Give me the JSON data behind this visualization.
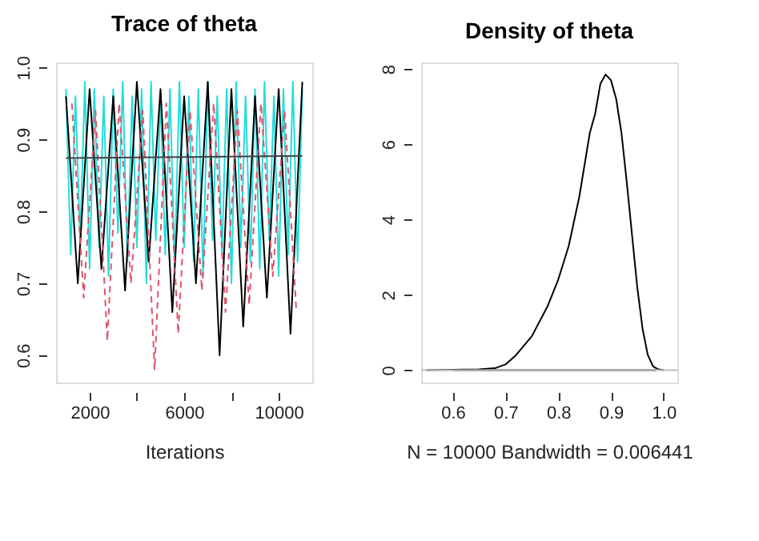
{
  "chart_data": [
    {
      "type": "line",
      "title": "Trace of theta",
      "xlabel": "Iterations",
      "xlim": [
        580,
        11420
      ],
      "ylim": [
        0.562,
        1.007
      ],
      "xticks": [
        {
          "value": 2000,
          "label": "2000"
        },
        {
          "value": 4000,
          "label": null
        },
        {
          "value": 6000,
          "label": "6000"
        },
        {
          "value": 8000,
          "label": null
        },
        {
          "value": 10000,
          "label": "10000"
        }
      ],
      "yticks": [
        0.6,
        0.7,
        0.8,
        0.9,
        {
          "value": 1.0,
          "label": "1.0"
        }
      ],
      "grid": false,
      "series": [
        {
          "color": "#22dddd",
          "line_style": "solid",
          "x": [
            1000,
            1200,
            1400,
            1600,
            1800,
            2000,
            2200,
            2400,
            2600,
            2800,
            3000,
            3200,
            3400,
            3600,
            3800,
            4000,
            4200,
            4400,
            4600,
            4800,
            5000,
            5200,
            5400,
            5600,
            5800,
            6000,
            6200,
            6400,
            6600,
            6800,
            7000,
            7200,
            7400,
            7600,
            7800,
            8000,
            8200,
            8400,
            8600,
            8800,
            9000,
            9200,
            9400,
            9600,
            9800,
            10000,
            10200,
            10400,
            10600,
            10800,
            11000
          ],
          "values": [
            0.97,
            0.74,
            0.96,
            0.76,
            0.98,
            0.72,
            0.97,
            0.75,
            0.96,
            0.71,
            0.97,
            0.77,
            0.98,
            0.73,
            0.96,
            0.75,
            0.97,
            0.7,
            0.98,
            0.76,
            0.96,
            0.74,
            0.97,
            0.72,
            0.98,
            0.75,
            0.96,
            0.73,
            0.97,
            0.71,
            0.98,
            0.76,
            0.96,
            0.74,
            0.97,
            0.7,
            0.98,
            0.75,
            0.96,
            0.73,
            0.97,
            0.72,
            0.98,
            0.76,
            0.96,
            0.71,
            0.97,
            0.74,
            0.98,
            0.73,
            0.97
          ]
        },
        {
          "color": "#000000",
          "line_style": "solid",
          "x": [
            1000,
            1500,
            2000,
            2500,
            3000,
            3500,
            4000,
            4500,
            5000,
            5500,
            6000,
            6500,
            7000,
            7500,
            8000,
            8500,
            9000,
            9500,
            10000,
            10500,
            11000
          ],
          "values": [
            0.96,
            0.7,
            0.97,
            0.72,
            0.96,
            0.69,
            0.98,
            0.73,
            0.97,
            0.66,
            0.96,
            0.7,
            0.98,
            0.6,
            0.97,
            0.64,
            0.96,
            0.68,
            0.97,
            0.63,
            0.98
          ]
        },
        {
          "color": "#df536b",
          "line_style": "dashed",
          "x": [
            1250,
            1750,
            2250,
            2750,
            3250,
            3750,
            4250,
            4750,
            5250,
            5750,
            6250,
            6750,
            7250,
            7750,
            8250,
            8750,
            9250,
            9750,
            10250,
            10750
          ],
          "values": [
            0.95,
            0.68,
            0.94,
            0.62,
            0.95,
            0.7,
            0.94,
            0.58,
            0.95,
            0.63,
            0.94,
            0.69,
            0.95,
            0.66,
            0.94,
            0.67,
            0.95,
            0.71,
            0.94,
            0.66
          ]
        },
        {
          "color": "#444444",
          "line_style": "solid",
          "x": [
            1000,
            11000
          ],
          "values": [
            0.874,
            0.877
          ]
        }
      ]
    },
    {
      "type": "line",
      "title": "Density of theta",
      "xlabel": "N = 10000   Bandwidth = 0.006441",
      "xlim": [
        0.54,
        1.026
      ],
      "ylim": [
        -0.33,
        8.17
      ],
      "xticks": [
        0.6,
        0.7,
        0.8,
        0.9,
        {
          "value": 1.0,
          "label": "1.0"
        }
      ],
      "yticks": [
        0,
        2,
        4,
        6,
        8
      ],
      "grid": false,
      "ref_lines": [
        {
          "axis": "y",
          "value": 0,
          "color": "#bebebe"
        }
      ],
      "series": [
        {
          "color": "#000000",
          "line_style": "solid",
          "x": [
            0.55,
            0.6,
            0.65,
            0.68,
            0.7,
            0.72,
            0.75,
            0.78,
            0.8,
            0.82,
            0.84,
            0.86,
            0.87,
            0.88,
            0.89,
            0.9,
            0.91,
            0.92,
            0.93,
            0.94,
            0.95,
            0.96,
            0.97,
            0.98,
            0.99,
            1.0
          ],
          "values": [
            0,
            0.01,
            0.02,
            0.05,
            0.15,
            0.4,
            0.9,
            1.7,
            2.4,
            3.3,
            4.6,
            6.3,
            6.8,
            7.6,
            7.85,
            7.7,
            7.2,
            6.3,
            5.0,
            3.6,
            2.2,
            1.1,
            0.4,
            0.1,
            0.02,
            0
          ]
        },
        {
          "color": "#000000",
          "line_style": "solid",
          "x": [
            0.6,
            0.985
          ],
          "values": [
            0,
            0
          ]
        }
      ]
    }
  ]
}
